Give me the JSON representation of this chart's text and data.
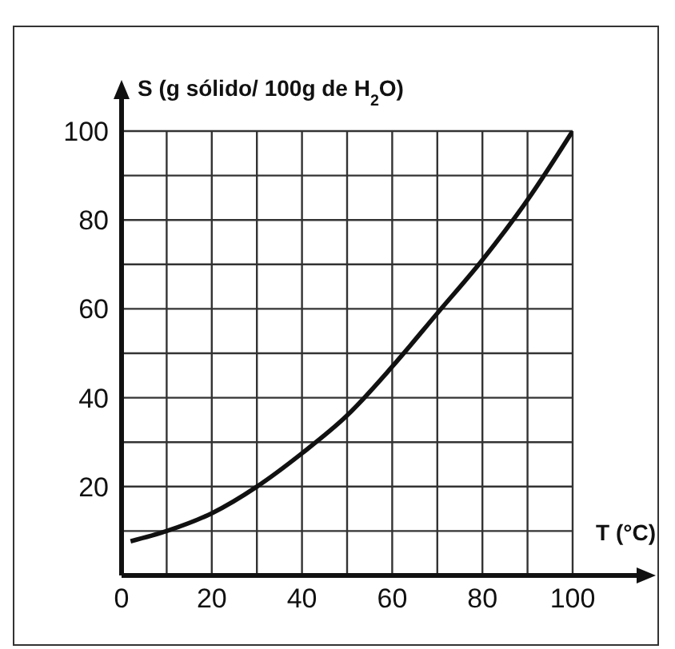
{
  "chart_data": {
    "type": "line",
    "xlabel": "T (°C)",
    "ylabel": "S (g sólido/ 100g de H$_{2}$O)",
    "series": [
      {
        "color": "#111111",
        "x": [
          2,
          10,
          20,
          30,
          40,
          50,
          60,
          70,
          80,
          90,
          100
        ],
        "values": [
          7.7,
          10,
          14,
          20,
          27.5,
          36,
          47,
          59,
          71,
          84.5,
          100
        ]
      }
    ],
    "xlim": [
      0,
      100
    ],
    "ylim": [
      0,
      100
    ],
    "xticks": [
      0,
      {
        "value": 10,
        "label": null
      },
      20,
      {
        "value": 30,
        "label": null
      },
      40,
      {
        "value": 50,
        "label": null
      },
      60,
      {
        "value": 70,
        "label": null
      },
      80,
      {
        "value": 90,
        "label": null
      },
      100
    ],
    "yticks": [
      {
        "value": 0,
        "label": null
      },
      {
        "value": 10,
        "label": null
      },
      20,
      {
        "value": 30,
        "label": null
      },
      40,
      {
        "value": 50,
        "label": null
      },
      60,
      {
        "value": 70,
        "label": null
      },
      80,
      {
        "value": 90,
        "label": null
      },
      100
    ],
    "grid": true,
    "marker": "none",
    "line_style": "solid"
  }
}
